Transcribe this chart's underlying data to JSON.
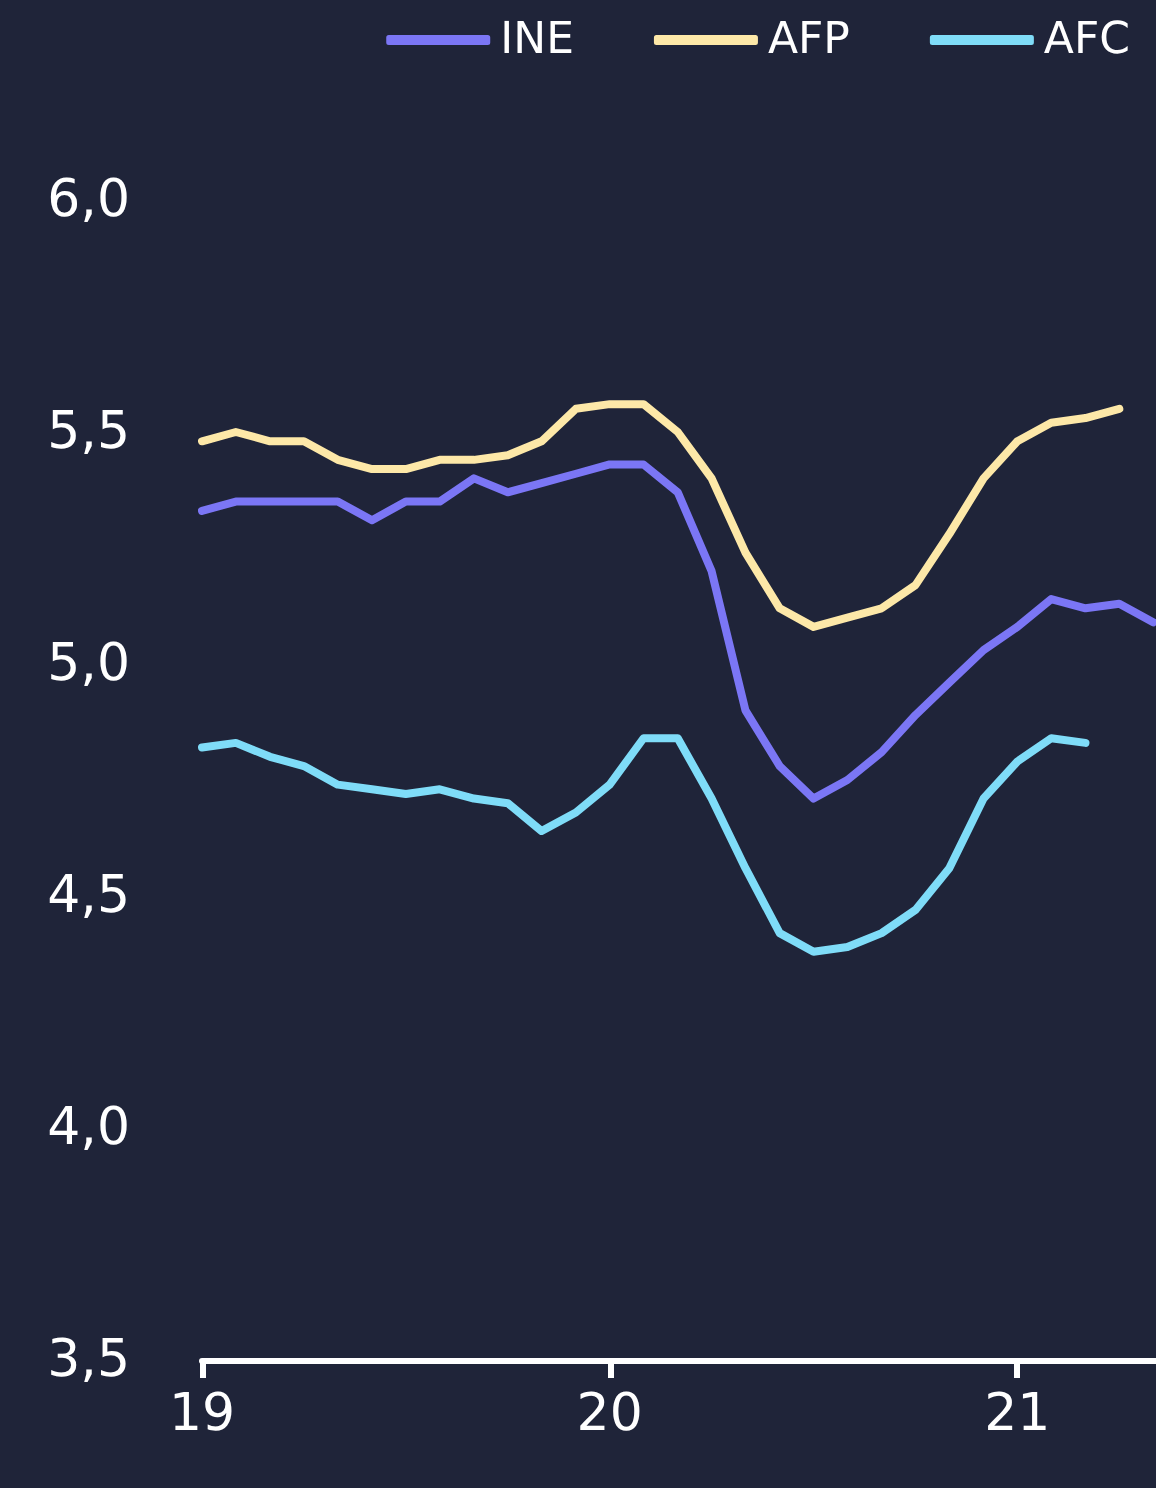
{
  "chart_data": {
    "type": "line",
    "x": [
      19,
      19.083,
      19.167,
      19.25,
      19.333,
      19.417,
      19.5,
      19.583,
      19.667,
      19.75,
      19.833,
      19.917,
      20,
      20.083,
      20.167,
      20.25,
      20.333,
      20.417,
      20.5,
      20.583,
      20.667,
      20.75,
      20.833,
      20.917,
      21,
      21.083,
      21.167,
      21.25,
      21.333
    ],
    "series": [
      {
        "name": "INE",
        "color": "#7b76f5",
        "values": [
          5.33,
          5.35,
          5.35,
          5.35,
          5.35,
          5.31,
          5.35,
          5.35,
          5.4,
          5.37,
          5.39,
          5.41,
          5.43,
          5.43,
          5.37,
          5.2,
          4.9,
          4.78,
          4.71,
          4.75,
          4.81,
          4.89,
          4.96,
          5.03,
          5.08,
          5.14,
          5.12,
          5.13,
          5.09
        ]
      },
      {
        "name": "AFP",
        "color": "#fde8a8",
        "values": [
          5.48,
          5.5,
          5.48,
          5.48,
          5.44,
          5.42,
          5.42,
          5.44,
          5.44,
          5.45,
          5.48,
          5.55,
          5.56,
          5.56,
          5.5,
          5.4,
          5.24,
          5.12,
          5.08,
          5.1,
          5.12,
          5.17,
          5.28,
          5.4,
          5.48,
          5.52,
          5.53,
          5.55,
          null
        ]
      },
      {
        "name": "AFC",
        "color": "#7fdcf8",
        "values": [
          4.82,
          4.83,
          4.8,
          4.78,
          4.74,
          4.73,
          4.72,
          4.73,
          4.71,
          4.7,
          4.64,
          4.68,
          4.74,
          4.84,
          4.84,
          4.71,
          4.56,
          4.42,
          4.38,
          4.39,
          4.42,
          4.47,
          4.56,
          4.71,
          4.79,
          4.84,
          4.83,
          null,
          null
        ]
      }
    ],
    "xlim": [
      19,
      21.34
    ],
    "xticks": [
      19,
      20,
      21
    ],
    "ylim": [
      3.5,
      6.0
    ],
    "yticks": [
      {
        "value": 3.5,
        "label": "3,5"
      },
      {
        "value": 4.0,
        "label": "4,0"
      },
      {
        "value": 4.5,
        "label": "4,5"
      },
      {
        "value": 5.0,
        "label": "5,0"
      },
      {
        "value": 5.5,
        "label": "5,5"
      },
      {
        "value": 6.0,
        "label": "6,0"
      }
    ],
    "grid": false,
    "legend": "top right",
    "marker": "none",
    "line_style": "solid"
  }
}
